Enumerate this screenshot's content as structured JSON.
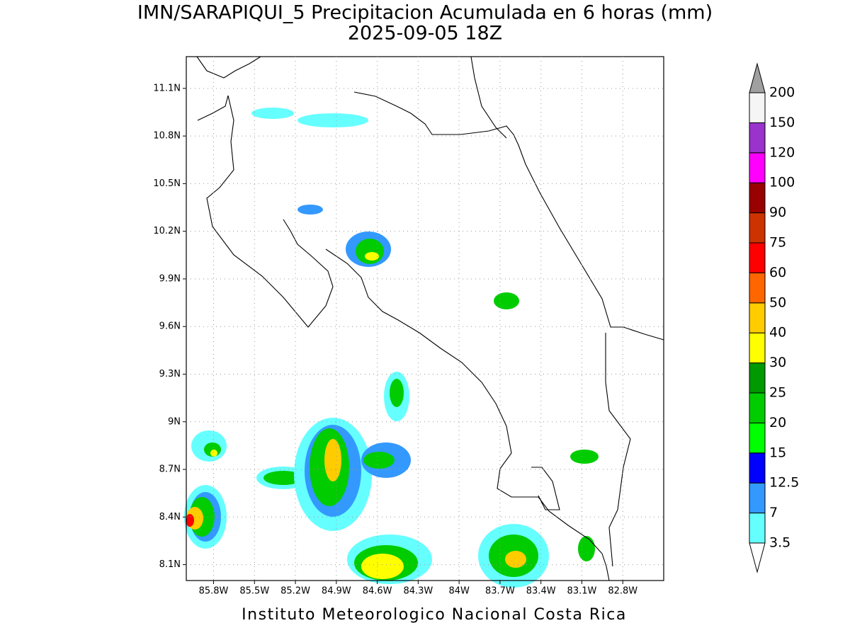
{
  "chart_data": {
    "type": "map",
    "title": "IMN/SARAPIQUI_5 Precipitacion Acumulada en 6 horas (mm)",
    "subtitle": "2025-09-05 18Z",
    "footer": "Instituto Meteorologico Nacional Costa Rica",
    "xlim": [
      -86.0,
      -82.5
    ],
    "ylim": [
      8.0,
      11.3
    ],
    "xticks": [
      {
        "value": -85.8,
        "label": "85.8W"
      },
      {
        "value": -85.5,
        "label": "85.5W"
      },
      {
        "value": -85.2,
        "label": "85.2W"
      },
      {
        "value": -84.9,
        "label": "84.9W"
      },
      {
        "value": -84.6,
        "label": "84.6W"
      },
      {
        "value": -84.3,
        "label": "84.3W"
      },
      {
        "value": -84.0,
        "label": "84W"
      },
      {
        "value": -83.7,
        "label": "83.7W"
      },
      {
        "value": -83.4,
        "label": "83.4W"
      },
      {
        "value": -83.1,
        "label": "83.1W"
      },
      {
        "value": -82.8,
        "label": "82.8W"
      }
    ],
    "yticks": [
      {
        "value": 8.1,
        "label": "8.1N"
      },
      {
        "value": 8.4,
        "label": "8.4N"
      },
      {
        "value": 8.7,
        "label": "8.7N"
      },
      {
        "value": 9.0,
        "label": "9N"
      },
      {
        "value": 9.3,
        "label": "9.3N"
      },
      {
        "value": 9.6,
        "label": "9.6N"
      },
      {
        "value": 9.9,
        "label": "9.9N"
      },
      {
        "value": 10.2,
        "label": "10.2N"
      },
      {
        "value": 10.5,
        "label": "10.5N"
      },
      {
        "value": 10.8,
        "label": "10.8N"
      },
      {
        "value": 11.1,
        "label": "11.1N"
      }
    ],
    "grid": true,
    "colorbar": {
      "levels": [
        3.5,
        7,
        12.5,
        15,
        20,
        25,
        30,
        40,
        50,
        60,
        75,
        90,
        100,
        120,
        150,
        200
      ],
      "colors": [
        "#ffffff",
        "#66ffff",
        "#3399ff",
        "#0000ff",
        "#00ff00",
        "#00cc00",
        "#009900",
        "#ffff00",
        "#ffcc00",
        "#ff6600",
        "#ff0000",
        "#cc3300",
        "#990000",
        "#ff00ff",
        "#9933cc",
        "#f5f5f5",
        "#a0a0a0"
      ]
    }
  }
}
